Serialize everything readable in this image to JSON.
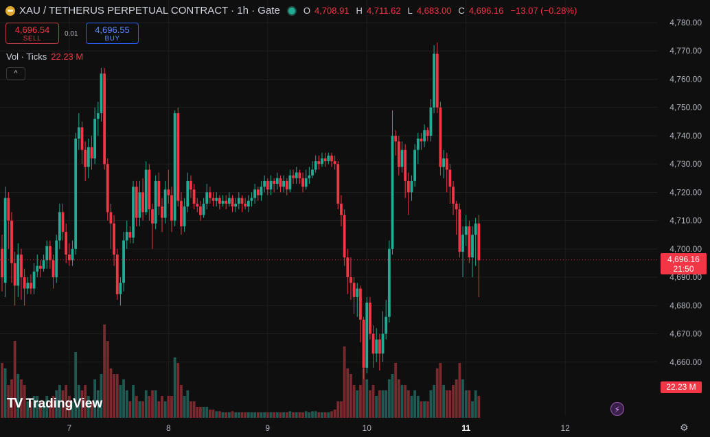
{
  "header": {
    "title": "XAU / TETHERUS PERPETUAL CONTRACT · 1h · Gate",
    "o_label": "O",
    "o": "4,708.91",
    "h_label": "H",
    "h": "4,711.62",
    "l_label": "L",
    "l": "4,683.00",
    "c_label": "C",
    "c": "4,696.16",
    "change": "−13.07 (−0.28%)"
  },
  "trade": {
    "sell_price": "4,696.54",
    "sell_label": "SELL",
    "spread": "0.01",
    "buy_price": "4,696.55",
    "buy_label": "BUY"
  },
  "volume": {
    "label": "Vol · Ticks",
    "value": "22.23 M"
  },
  "collapse_glyph": "^",
  "brand": {
    "mark": "TV",
    "name": "TradingView"
  },
  "price_label": {
    "price": "4,696.16",
    "countdown": "21:50"
  },
  "volume_label": "22.23 M",
  "colors": {
    "up": "#22ab94",
    "down": "#f23645",
    "vol_up": "#1f5a52",
    "vol_down": "#7a2a2f",
    "bg": "#0f0f0f",
    "grid": "#1e1e1e"
  },
  "chart_data": {
    "type": "candlestick",
    "x_tick_labels": [
      "7",
      "8",
      "9",
      "10",
      "11",
      "12"
    ],
    "x_tick_index": [
      21,
      52,
      83,
      114,
      145,
      176
    ],
    "ylim": [
      4650,
      4785
    ],
    "y_ticks": [
      4660,
      4670,
      4680,
      4690,
      4700,
      4710,
      4720,
      4730,
      4740,
      4750,
      4760,
      4770,
      4780
    ],
    "y_tick_labels": [
      "4,660.00",
      "4,670.00",
      "4,680.00",
      "4,690.00",
      "4,700.00",
      "4,710.00",
      "4,720.00",
      "4,730.00",
      "4,740.00",
      "4,750.00",
      "4,760.00",
      "4,770.00",
      "4,780.00"
    ],
    "last_price": 4696.16,
    "series": [
      {
        "o": 4700,
        "c": 4690,
        "h": 4705,
        "l": 4685,
        "v": 1.0
      },
      {
        "o": 4688,
        "c": 4718,
        "h": 4722,
        "l": 4683,
        "v": 0.9
      },
      {
        "o": 4718,
        "c": 4710,
        "h": 4720,
        "l": 4700,
        "v": 0.6
      },
      {
        "o": 4710,
        "c": 4695,
        "h": 4713,
        "l": 4688,
        "v": 0.7
      },
      {
        "o": 4695,
        "c": 4687,
        "h": 4699,
        "l": 4680,
        "v": 1.4
      },
      {
        "o": 4687,
        "c": 4698,
        "h": 4702,
        "l": 4683,
        "v": 0.8
      },
      {
        "o": 4698,
        "c": 4690,
        "h": 4700,
        "l": 4682,
        "v": 0.7
      },
      {
        "o": 4690,
        "c": 4686,
        "h": 4693,
        "l": 4680,
        "v": 0.6
      },
      {
        "o": 4686,
        "c": 4688,
        "h": 4690,
        "l": 4684,
        "v": 0.3
      },
      {
        "o": 4688,
        "c": 4686,
        "h": 4691,
        "l": 4684,
        "v": 0.3
      },
      {
        "o": 4686,
        "c": 4692,
        "h": 4695,
        "l": 4684,
        "v": 0.4
      },
      {
        "o": 4692,
        "c": 4694,
        "h": 4698,
        "l": 4690,
        "v": 0.4
      },
      {
        "o": 4694,
        "c": 4693,
        "h": 4696,
        "l": 4690,
        "v": 0.3
      },
      {
        "o": 4693,
        "c": 4696,
        "h": 4698,
        "l": 4692,
        "v": 0.3
      },
      {
        "o": 4696,
        "c": 4701,
        "h": 4703,
        "l": 4693,
        "v": 0.4
      },
      {
        "o": 4701,
        "c": 4696,
        "h": 4703,
        "l": 4693,
        "v": 0.3
      },
      {
        "o": 4696,
        "c": 4690,
        "h": 4698,
        "l": 4686,
        "v": 0.4
      },
      {
        "o": 4690,
        "c": 4703,
        "h": 4705,
        "l": 4688,
        "v": 0.5
      },
      {
        "o": 4703,
        "c": 4713,
        "h": 4716,
        "l": 4700,
        "v": 0.6
      },
      {
        "o": 4713,
        "c": 4706,
        "h": 4716,
        "l": 4703,
        "v": 0.5
      },
      {
        "o": 4706,
        "c": 4698,
        "h": 4709,
        "l": 4695,
        "v": 0.6
      },
      {
        "o": 4698,
        "c": 4696,
        "h": 4702,
        "l": 4694,
        "v": 0.4
      },
      {
        "o": 4696,
        "c": 4700,
        "h": 4703,
        "l": 4694,
        "v": 0.3
      },
      {
        "o": 4700,
        "c": 4739,
        "h": 4741,
        "l": 4698,
        "v": 1.2
      },
      {
        "o": 4739,
        "c": 4743,
        "h": 4748,
        "l": 4735,
        "v": 0.6
      },
      {
        "o": 4743,
        "c": 4735,
        "h": 4745,
        "l": 4730,
        "v": 0.5
      },
      {
        "o": 4735,
        "c": 4729,
        "h": 4738,
        "l": 4724,
        "v": 0.6
      },
      {
        "o": 4729,
        "c": 4736,
        "h": 4739,
        "l": 4725,
        "v": 0.4
      },
      {
        "o": 4736,
        "c": 4732,
        "h": 4740,
        "l": 4728,
        "v": 0.3
      },
      {
        "o": 4732,
        "c": 4746,
        "h": 4750,
        "l": 4730,
        "v": 0.7
      },
      {
        "o": 4746,
        "c": 4748,
        "h": 4752,
        "l": 4740,
        "v": 0.5
      },
      {
        "o": 4748,
        "c": 4762,
        "h": 4764,
        "l": 4745,
        "v": 0.8
      },
      {
        "o": 4762,
        "c": 4730,
        "h": 4764,
        "l": 4728,
        "v": 1.7
      },
      {
        "o": 4730,
        "c": 4713,
        "h": 4732,
        "l": 4710,
        "v": 1.4
      },
      {
        "o": 4713,
        "c": 4709,
        "h": 4716,
        "l": 4700,
        "v": 0.9
      },
      {
        "o": 4709,
        "c": 4698,
        "h": 4712,
        "l": 4694,
        "v": 0.8
      },
      {
        "o": 4698,
        "c": 4684,
        "h": 4700,
        "l": 4682,
        "v": 0.8
      },
      {
        "o": 4684,
        "c": 4688,
        "h": 4690,
        "l": 4680,
        "v": 0.6
      },
      {
        "o": 4688,
        "c": 4703,
        "h": 4706,
        "l": 4685,
        "v": 0.7
      },
      {
        "o": 4703,
        "c": 4706,
        "h": 4710,
        "l": 4700,
        "v": 0.5
      },
      {
        "o": 4706,
        "c": 4704,
        "h": 4708,
        "l": 4702,
        "v": 0.3
      },
      {
        "o": 4704,
        "c": 4722,
        "h": 4724,
        "l": 4702,
        "v": 0.6
      },
      {
        "o": 4722,
        "c": 4711,
        "h": 4724,
        "l": 4708,
        "v": 0.4
      },
      {
        "o": 4711,
        "c": 4720,
        "h": 4724,
        "l": 4708,
        "v": 0.3
      },
      {
        "o": 4720,
        "c": 4713,
        "h": 4725,
        "l": 4710,
        "v": 0.3
      },
      {
        "o": 4713,
        "c": 4728,
        "h": 4731,
        "l": 4712,
        "v": 0.5
      },
      {
        "o": 4728,
        "c": 4714,
        "h": 4730,
        "l": 4710,
        "v": 0.4
      },
      {
        "o": 4714,
        "c": 4709,
        "h": 4716,
        "l": 4700,
        "v": 0.5
      },
      {
        "o": 4709,
        "c": 4724,
        "h": 4726,
        "l": 4707,
        "v": 0.5
      },
      {
        "o": 4724,
        "c": 4715,
        "h": 4727,
        "l": 4712,
        "v": 0.3
      },
      {
        "o": 4715,
        "c": 4711,
        "h": 4718,
        "l": 4706,
        "v": 0.4
      },
      {
        "o": 4711,
        "c": 4721,
        "h": 4724,
        "l": 4709,
        "v": 0.3
      },
      {
        "o": 4721,
        "c": 4719,
        "h": 4728,
        "l": 4716,
        "v": 0.4
      },
      {
        "o": 4719,
        "c": 4710,
        "h": 4722,
        "l": 4706,
        "v": 0.4
      },
      {
        "o": 4710,
        "c": 4748,
        "h": 4749,
        "l": 4708,
        "v": 1.1
      },
      {
        "o": 4748,
        "c": 4717,
        "h": 4750,
        "l": 4715,
        "v": 1.0
      },
      {
        "o": 4717,
        "c": 4708,
        "h": 4720,
        "l": 4705,
        "v": 0.6
      },
      {
        "o": 4708,
        "c": 4715,
        "h": 4718,
        "l": 4706,
        "v": 0.4
      },
      {
        "o": 4715,
        "c": 4724,
        "h": 4727,
        "l": 4713,
        "v": 0.5
      },
      {
        "o": 4724,
        "c": 4721,
        "h": 4726,
        "l": 4718,
        "v": 0.3
      },
      {
        "o": 4721,
        "c": 4716,
        "h": 4723,
        "l": 4714,
        "v": 0.3
      },
      {
        "o": 4716,
        "c": 4715,
        "h": 4718,
        "l": 4713,
        "v": 0.2
      },
      {
        "o": 4715,
        "c": 4712,
        "h": 4717,
        "l": 4710,
        "v": 0.2
      },
      {
        "o": 4712,
        "c": 4716,
        "h": 4718,
        "l": 4711,
        "v": 0.2
      },
      {
        "o": 4716,
        "c": 4720,
        "h": 4723,
        "l": 4714,
        "v": 0.2
      },
      {
        "o": 4720,
        "c": 4718,
        "h": 4722,
        "l": 4716,
        "v": 0.15
      },
      {
        "o": 4718,
        "c": 4717,
        "h": 4720,
        "l": 4715,
        "v": 0.15
      },
      {
        "o": 4717,
        "c": 4718,
        "h": 4720,
        "l": 4715,
        "v": 0.12
      },
      {
        "o": 4718,
        "c": 4716,
        "h": 4719,
        "l": 4714,
        "v": 0.12
      },
      {
        "o": 4716,
        "c": 4717,
        "h": 4719,
        "l": 4715,
        "v": 0.1
      },
      {
        "o": 4717,
        "c": 4716,
        "h": 4719,
        "l": 4714,
        "v": 0.1
      },
      {
        "o": 4716,
        "c": 4718,
        "h": 4720,
        "l": 4715,
        "v": 0.1
      },
      {
        "o": 4718,
        "c": 4715,
        "h": 4719,
        "l": 4713,
        "v": 0.12
      },
      {
        "o": 4715,
        "c": 4716,
        "h": 4718,
        "l": 4713,
        "v": 0.1
      },
      {
        "o": 4716,
        "c": 4718,
        "h": 4720,
        "l": 4714,
        "v": 0.1
      },
      {
        "o": 4718,
        "c": 4716,
        "h": 4719,
        "l": 4713,
        "v": 0.1
      },
      {
        "o": 4716,
        "c": 4715,
        "h": 4718,
        "l": 4714,
        "v": 0.1
      },
      {
        "o": 4715,
        "c": 4717,
        "h": 4719,
        "l": 4713,
        "v": 0.1
      },
      {
        "o": 4717,
        "c": 4718,
        "h": 4720,
        "l": 4715,
        "v": 0.1
      },
      {
        "o": 4718,
        "c": 4721,
        "h": 4723,
        "l": 4716,
        "v": 0.1
      },
      {
        "o": 4721,
        "c": 4719,
        "h": 4722,
        "l": 4717,
        "v": 0.1
      },
      {
        "o": 4719,
        "c": 4722,
        "h": 4724,
        "l": 4717,
        "v": 0.1
      },
      {
        "o": 4722,
        "c": 4724,
        "h": 4726,
        "l": 4720,
        "v": 0.1
      },
      {
        "o": 4724,
        "c": 4721,
        "h": 4725,
        "l": 4719,
        "v": 0.1
      },
      {
        "o": 4721,
        "c": 4724,
        "h": 4726,
        "l": 4719,
        "v": 0.1
      },
      {
        "o": 4724,
        "c": 4723,
        "h": 4725,
        "l": 4720,
        "v": 0.1
      },
      {
        "o": 4723,
        "c": 4725,
        "h": 4727,
        "l": 4721,
        "v": 0.1
      },
      {
        "o": 4725,
        "c": 4722,
        "h": 4726,
        "l": 4720,
        "v": 0.1
      },
      {
        "o": 4722,
        "c": 4724,
        "h": 4726,
        "l": 4720,
        "v": 0.1
      },
      {
        "o": 4724,
        "c": 4721,
        "h": 4725,
        "l": 4719,
        "v": 0.1
      },
      {
        "o": 4721,
        "c": 4726,
        "h": 4728,
        "l": 4720,
        "v": 0.12
      },
      {
        "o": 4726,
        "c": 4725,
        "h": 4728,
        "l": 4723,
        "v": 0.1
      },
      {
        "o": 4725,
        "c": 4727,
        "h": 4729,
        "l": 4723,
        "v": 0.1
      },
      {
        "o": 4727,
        "c": 4725,
        "h": 4728,
        "l": 4723,
        "v": 0.1
      },
      {
        "o": 4725,
        "c": 4722,
        "h": 4727,
        "l": 4720,
        "v": 0.1
      },
      {
        "o": 4722,
        "c": 4725,
        "h": 4728,
        "l": 4721,
        "v": 0.12
      },
      {
        "o": 4725,
        "c": 4726,
        "h": 4729,
        "l": 4723,
        "v": 0.1
      },
      {
        "o": 4726,
        "c": 4728,
        "h": 4731,
        "l": 4725,
        "v": 0.12
      },
      {
        "o": 4728,
        "c": 4731,
        "h": 4733,
        "l": 4727,
        "v": 0.12
      },
      {
        "o": 4731,
        "c": 4730,
        "h": 4733,
        "l": 4728,
        "v": 0.1
      },
      {
        "o": 4730,
        "c": 4732,
        "h": 4734,
        "l": 4729,
        "v": 0.1
      },
      {
        "o": 4732,
        "c": 4731,
        "h": 4734,
        "l": 4729,
        "v": 0.1
      },
      {
        "o": 4731,
        "c": 4733,
        "h": 4734,
        "l": 4730,
        "v": 0.1
      },
      {
        "o": 4733,
        "c": 4731,
        "h": 4734,
        "l": 4729,
        "v": 0.12
      },
      {
        "o": 4731,
        "c": 4730,
        "h": 4733,
        "l": 4728,
        "v": 0.15
      },
      {
        "o": 4730,
        "c": 4716,
        "h": 4731,
        "l": 4714,
        "v": 0.3
      },
      {
        "o": 4716,
        "c": 4712,
        "h": 4719,
        "l": 4708,
        "v": 0.3
      },
      {
        "o": 4712,
        "c": 4697,
        "h": 4714,
        "l": 4694,
        "v": 1.3
      },
      {
        "o": 4697,
        "c": 4690,
        "h": 4700,
        "l": 4684,
        "v": 0.9
      },
      {
        "o": 4690,
        "c": 4688,
        "h": 4697,
        "l": 4682,
        "v": 0.8
      },
      {
        "o": 4688,
        "c": 4683,
        "h": 4690,
        "l": 4677,
        "v": 0.6
      },
      {
        "o": 4683,
        "c": 4686,
        "h": 4688,
        "l": 4676,
        "v": 0.5
      },
      {
        "o": 4686,
        "c": 4675,
        "h": 4687,
        "l": 4667,
        "v": 0.6
      },
      {
        "o": 4675,
        "c": 4658,
        "h": 4676,
        "l": 4654,
        "v": 0.9
      },
      {
        "o": 4658,
        "c": 4681,
        "h": 4683,
        "l": 4656,
        "v": 0.7
      },
      {
        "o": 4681,
        "c": 4670,
        "h": 4683,
        "l": 4668,
        "v": 0.5
      },
      {
        "o": 4670,
        "c": 4663,
        "h": 4673,
        "l": 4658,
        "v": 0.6
      },
      {
        "o": 4663,
        "c": 4668,
        "h": 4672,
        "l": 4660,
        "v": 0.4
      },
      {
        "o": 4668,
        "c": 4663,
        "h": 4670,
        "l": 4657,
        "v": 0.5
      },
      {
        "o": 4663,
        "c": 4670,
        "h": 4678,
        "l": 4660,
        "v": 0.5
      },
      {
        "o": 4670,
        "c": 4676,
        "h": 4682,
        "l": 4668,
        "v": 0.5
      },
      {
        "o": 4676,
        "c": 4700,
        "h": 4703,
        "l": 4674,
        "v": 0.7
      },
      {
        "o": 4700,
        "c": 4740,
        "h": 4749,
        "l": 4698,
        "v": 0.8
      },
      {
        "o": 4740,
        "c": 4738,
        "h": 4742,
        "l": 4733,
        "v": 1.0
      },
      {
        "o": 4738,
        "c": 4729,
        "h": 4740,
        "l": 4726,
        "v": 0.7
      },
      {
        "o": 4729,
        "c": 4735,
        "h": 4738,
        "l": 4727,
        "v": 0.6
      },
      {
        "o": 4735,
        "c": 4724,
        "h": 4737,
        "l": 4718,
        "v": 0.6
      },
      {
        "o": 4724,
        "c": 4720,
        "h": 4727,
        "l": 4712,
        "v": 0.5
      },
      {
        "o": 4720,
        "c": 4724,
        "h": 4726,
        "l": 4717,
        "v": 0.4
      },
      {
        "o": 4724,
        "c": 4735,
        "h": 4737,
        "l": 4722,
        "v": 0.5
      },
      {
        "o": 4735,
        "c": 4739,
        "h": 4741,
        "l": 4730,
        "v": 0.4
      },
      {
        "o": 4739,
        "c": 4738,
        "h": 4741,
        "l": 4735,
        "v": 0.3
      },
      {
        "o": 4738,
        "c": 4742,
        "h": 4744,
        "l": 4736,
        "v": 0.3
      },
      {
        "o": 4742,
        "c": 4740,
        "h": 4743,
        "l": 4738,
        "v": 0.3
      },
      {
        "o": 4740,
        "c": 4750,
        "h": 4753,
        "l": 4738,
        "v": 0.5
      },
      {
        "o": 4750,
        "c": 4769,
        "h": 4772,
        "l": 4748,
        "v": 0.6
      },
      {
        "o": 4769,
        "c": 4750,
        "h": 4773,
        "l": 4748,
        "v": 0.9
      },
      {
        "o": 4750,
        "c": 4729,
        "h": 4752,
        "l": 4726,
        "v": 1.0
      },
      {
        "o": 4729,
        "c": 4732,
        "h": 4735,
        "l": 4725,
        "v": 0.6
      },
      {
        "o": 4732,
        "c": 4728,
        "h": 4734,
        "l": 4720,
        "v": 0.5
      },
      {
        "o": 4728,
        "c": 4722,
        "h": 4730,
        "l": 4716,
        "v": 0.5
      },
      {
        "o": 4722,
        "c": 4716,
        "h": 4724,
        "l": 4712,
        "v": 0.6
      },
      {
        "o": 4716,
        "c": 4714,
        "h": 4717,
        "l": 4705,
        "v": 0.7
      },
      {
        "o": 4714,
        "c": 4699,
        "h": 4716,
        "l": 4697,
        "v": 1.0
      },
      {
        "o": 4699,
        "c": 4705,
        "h": 4708,
        "l": 4690,
        "v": 0.7
      },
      {
        "o": 4705,
        "c": 4708,
        "h": 4712,
        "l": 4701,
        "v": 0.5
      },
      {
        "o": 4708,
        "c": 4697,
        "h": 4710,
        "l": 4695,
        "v": 0.5
      },
      {
        "o": 4697,
        "c": 4705,
        "h": 4708,
        "l": 4690,
        "v": 0.3
      },
      {
        "o": 4705,
        "c": 4709,
        "h": 4711,
        "l": 4694,
        "v": 0.5
      },
      {
        "o": 4709,
        "c": 4696,
        "h": 4712,
        "l": 4683,
        "v": 0.4
      }
    ]
  }
}
